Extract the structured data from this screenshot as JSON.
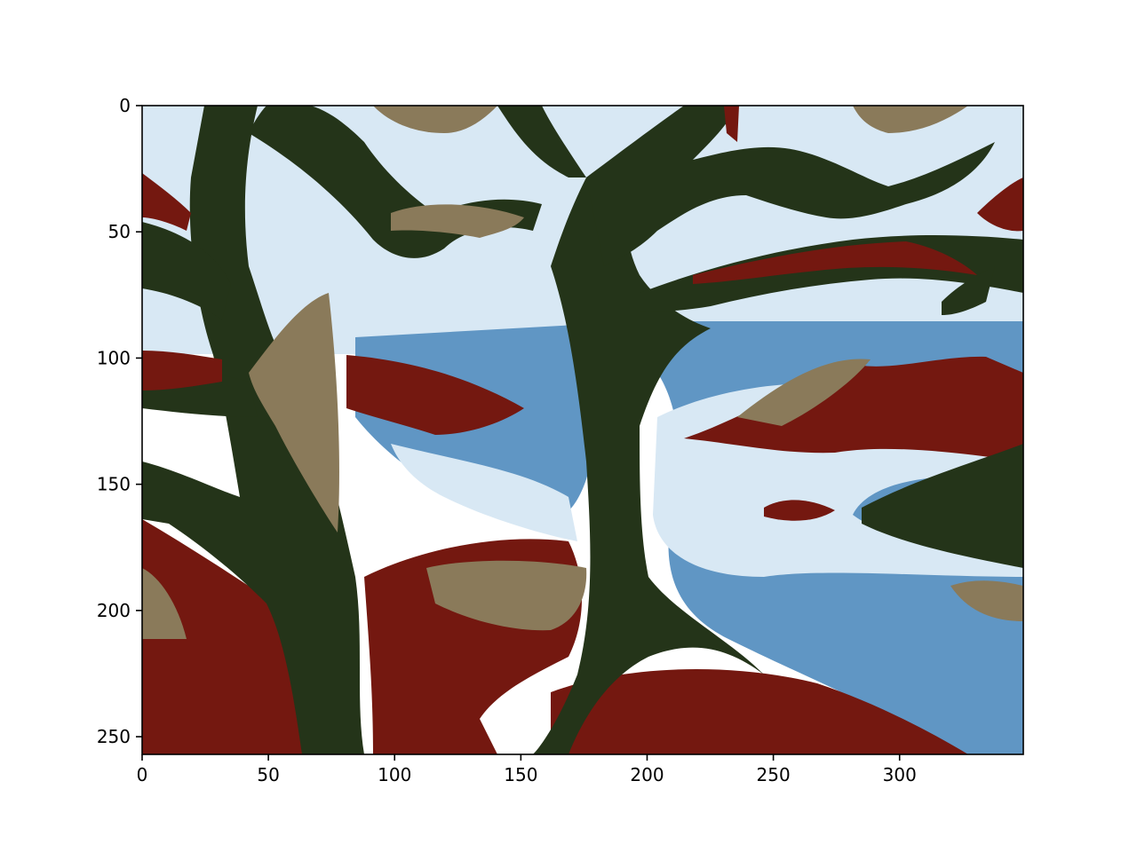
{
  "chart_data": {
    "type": "heatmap",
    "title": "",
    "xlabel": "",
    "ylabel": "",
    "xlim": [
      0,
      349
    ],
    "ylim": [
      257,
      0
    ],
    "x_ticks": [
      0,
      50,
      100,
      150,
      200,
      250,
      300
    ],
    "y_ticks": [
      0,
      50,
      100,
      150,
      200,
      250
    ],
    "x_tick_labels": [
      "0",
      "50",
      "100",
      "150",
      "200",
      "250",
      "300"
    ],
    "y_tick_labels": [
      "0",
      "50",
      "100",
      "150",
      "200",
      "250"
    ],
    "grid": false,
    "legend": "none",
    "image_shape": [
      257,
      349
    ],
    "palette": {
      "dark_green": "#243419",
      "tan": "#8a7a5a",
      "red": "#741810",
      "blue": "#6096c4",
      "light_blue": "#d8e8f4",
      "white": "#ffffff"
    },
    "content": "posterized painting of twisted trees over a river landscape with sky"
  }
}
